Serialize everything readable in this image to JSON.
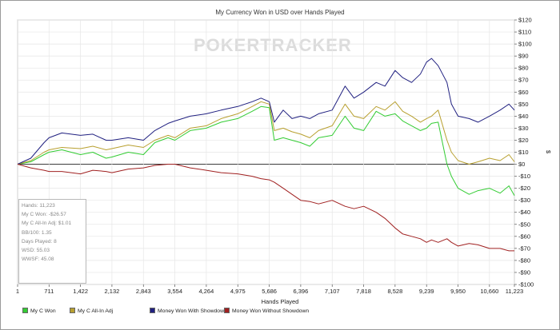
{
  "chart_data": {
    "type": "line",
    "title": "My Currency Won in USD over Hands Played",
    "xlabel": "Hands Played",
    "ylabel": "$",
    "xlim": [
      1,
      11223
    ],
    "ylim": [
      -100,
      120
    ],
    "x_ticks": [
      1,
      711,
      1422,
      2132,
      2843,
      3554,
      4264,
      4975,
      5686,
      6396,
      7107,
      7818,
      8528,
      9239,
      9950,
      10660,
      11223
    ],
    "x_tick_labels": [
      "1",
      "711",
      "1,422",
      "2,132",
      "2,843",
      "3,554",
      "4,264",
      "4,975",
      "5,686",
      "6,396",
      "7,107",
      "7,818",
      "8,528",
      "9,239",
      "9,950",
      "10,660",
      "11,223"
    ],
    "y_ticks": [
      120,
      110,
      100,
      90,
      80,
      70,
      60,
      50,
      40,
      30,
      20,
      10,
      0,
      -10,
      -20,
      -30,
      -40,
      -50,
      -60,
      -70,
      -80,
      -90,
      -100
    ],
    "y_tick_labels": [
      "$120",
      "$110",
      "$100",
      "$90",
      "$80",
      "$70",
      "$60",
      "$50",
      "$40",
      "$30",
      "$20",
      "$10",
      "$0",
      "-$10",
      "-$20",
      "-$30",
      "-$40",
      "-$50",
      "-$60",
      "-$70",
      "-$80",
      "-$90",
      "-$100"
    ],
    "grid": true,
    "legend_position": "bottom",
    "series": [
      {
        "name": "My C Won",
        "color": "#33cc33",
        "x": [
          1,
          300,
          600,
          711,
          1000,
          1422,
          1700,
          2000,
          2132,
          2500,
          2843,
          3100,
          3400,
          3554,
          3900,
          4264,
          4600,
          4975,
          5300,
          5500,
          5686,
          5800,
          6000,
          6200,
          6396,
          6600,
          6800,
          7107,
          7400,
          7600,
          7818,
          8100,
          8300,
          8528,
          8700,
          8900,
          9100,
          9239,
          9350,
          9500,
          9700,
          9800,
          9950,
          10200,
          10400,
          10660,
          10900,
          11100,
          11223
        ],
        "y": [
          0,
          2,
          8,
          10,
          12,
          8,
          10,
          5,
          6,
          10,
          8,
          18,
          22,
          20,
          28,
          30,
          35,
          38,
          44,
          48,
          47,
          20,
          22,
          20,
          18,
          15,
          22,
          24,
          40,
          30,
          28,
          44,
          40,
          42,
          36,
          32,
          28,
          30,
          34,
          35,
          0,
          -10,
          -20,
          -25,
          -22,
          -20,
          -24,
          -18,
          -26
        ]
      },
      {
        "name": "My C All-In Adj",
        "color": "#b8a030",
        "x": [
          1,
          300,
          600,
          711,
          1000,
          1422,
          1700,
          2000,
          2132,
          2500,
          2843,
          3100,
          3400,
          3554,
          3900,
          4264,
          4600,
          4975,
          5300,
          5500,
          5686,
          5800,
          6000,
          6200,
          6396,
          6600,
          6800,
          7107,
          7400,
          7600,
          7818,
          8100,
          8300,
          8528,
          8700,
          8900,
          9100,
          9239,
          9350,
          9500,
          9700,
          9800,
          9950,
          10200,
          10400,
          10660,
          10900,
          11100,
          11223
        ],
        "y": [
          0,
          3,
          10,
          12,
          14,
          13,
          15,
          12,
          13,
          16,
          14,
          20,
          24,
          22,
          30,
          32,
          38,
          42,
          48,
          52,
          50,
          28,
          30,
          27,
          25,
          22,
          28,
          32,
          50,
          40,
          38,
          48,
          45,
          52,
          44,
          40,
          35,
          38,
          40,
          45,
          20,
          10,
          3,
          0,
          2,
          5,
          3,
          8,
          2
        ]
      },
      {
        "name": "Money Won With Showdown",
        "color": "#202080",
        "x": [
          1,
          300,
          600,
          711,
          1000,
          1422,
          1700,
          2000,
          2132,
          2500,
          2843,
          3100,
          3400,
          3554,
          3900,
          4264,
          4600,
          4975,
          5300,
          5500,
          5686,
          5800,
          6000,
          6200,
          6396,
          6600,
          6800,
          7107,
          7400,
          7600,
          7818,
          8100,
          8300,
          8528,
          8700,
          8900,
          9100,
          9239,
          9350,
          9500,
          9700,
          9800,
          9950,
          10200,
          10400,
          10660,
          10900,
          11100,
          11223
        ],
        "y": [
          0,
          5,
          18,
          22,
          26,
          24,
          25,
          20,
          20,
          22,
          20,
          28,
          34,
          36,
          40,
          42,
          45,
          48,
          52,
          55,
          52,
          35,
          45,
          38,
          40,
          38,
          42,
          45,
          65,
          55,
          60,
          68,
          65,
          78,
          72,
          68,
          75,
          85,
          88,
          82,
          68,
          50,
          40,
          38,
          35,
          40,
          45,
          50,
          45
        ]
      },
      {
        "name": "Money Won Without Showdown",
        "color": "#a02020",
        "x": [
          1,
          300,
          600,
          711,
          1000,
          1422,
          1700,
          2000,
          2132,
          2500,
          2843,
          3100,
          3400,
          3554,
          3900,
          4264,
          4600,
          4975,
          5300,
          5500,
          5686,
          5800,
          6000,
          6200,
          6396,
          6600,
          6800,
          7107,
          7400,
          7600,
          7818,
          8100,
          8300,
          8528,
          8700,
          8900,
          9100,
          9239,
          9350,
          9500,
          9700,
          9800,
          9950,
          10200,
          10400,
          10660,
          10900,
          11100,
          11223
        ],
        "y": [
          0,
          -3,
          -5,
          -6,
          -6,
          -8,
          -5,
          -6,
          -7,
          -4,
          -3,
          -1,
          0,
          0,
          -3,
          -5,
          -7,
          -8,
          -10,
          -12,
          -13,
          -15,
          -20,
          -25,
          -30,
          -31,
          -33,
          -30,
          -35,
          -37,
          -35,
          -40,
          -45,
          -53,
          -58,
          -60,
          -62,
          -65,
          -63,
          -65,
          -62,
          -65,
          -68,
          -66,
          -67,
          -70,
          -70,
          -72,
          -72
        ]
      }
    ]
  },
  "stats": [
    "Hands: 11,223",
    "My C Won: -$26.57",
    "My C All-In Adj: $1.01",
    "BB/100: 1.35",
    "Days Played: 8",
    "WSD: 55.03",
    "WWSF: 45.08"
  ],
  "watermark": "POKERTRACKER"
}
